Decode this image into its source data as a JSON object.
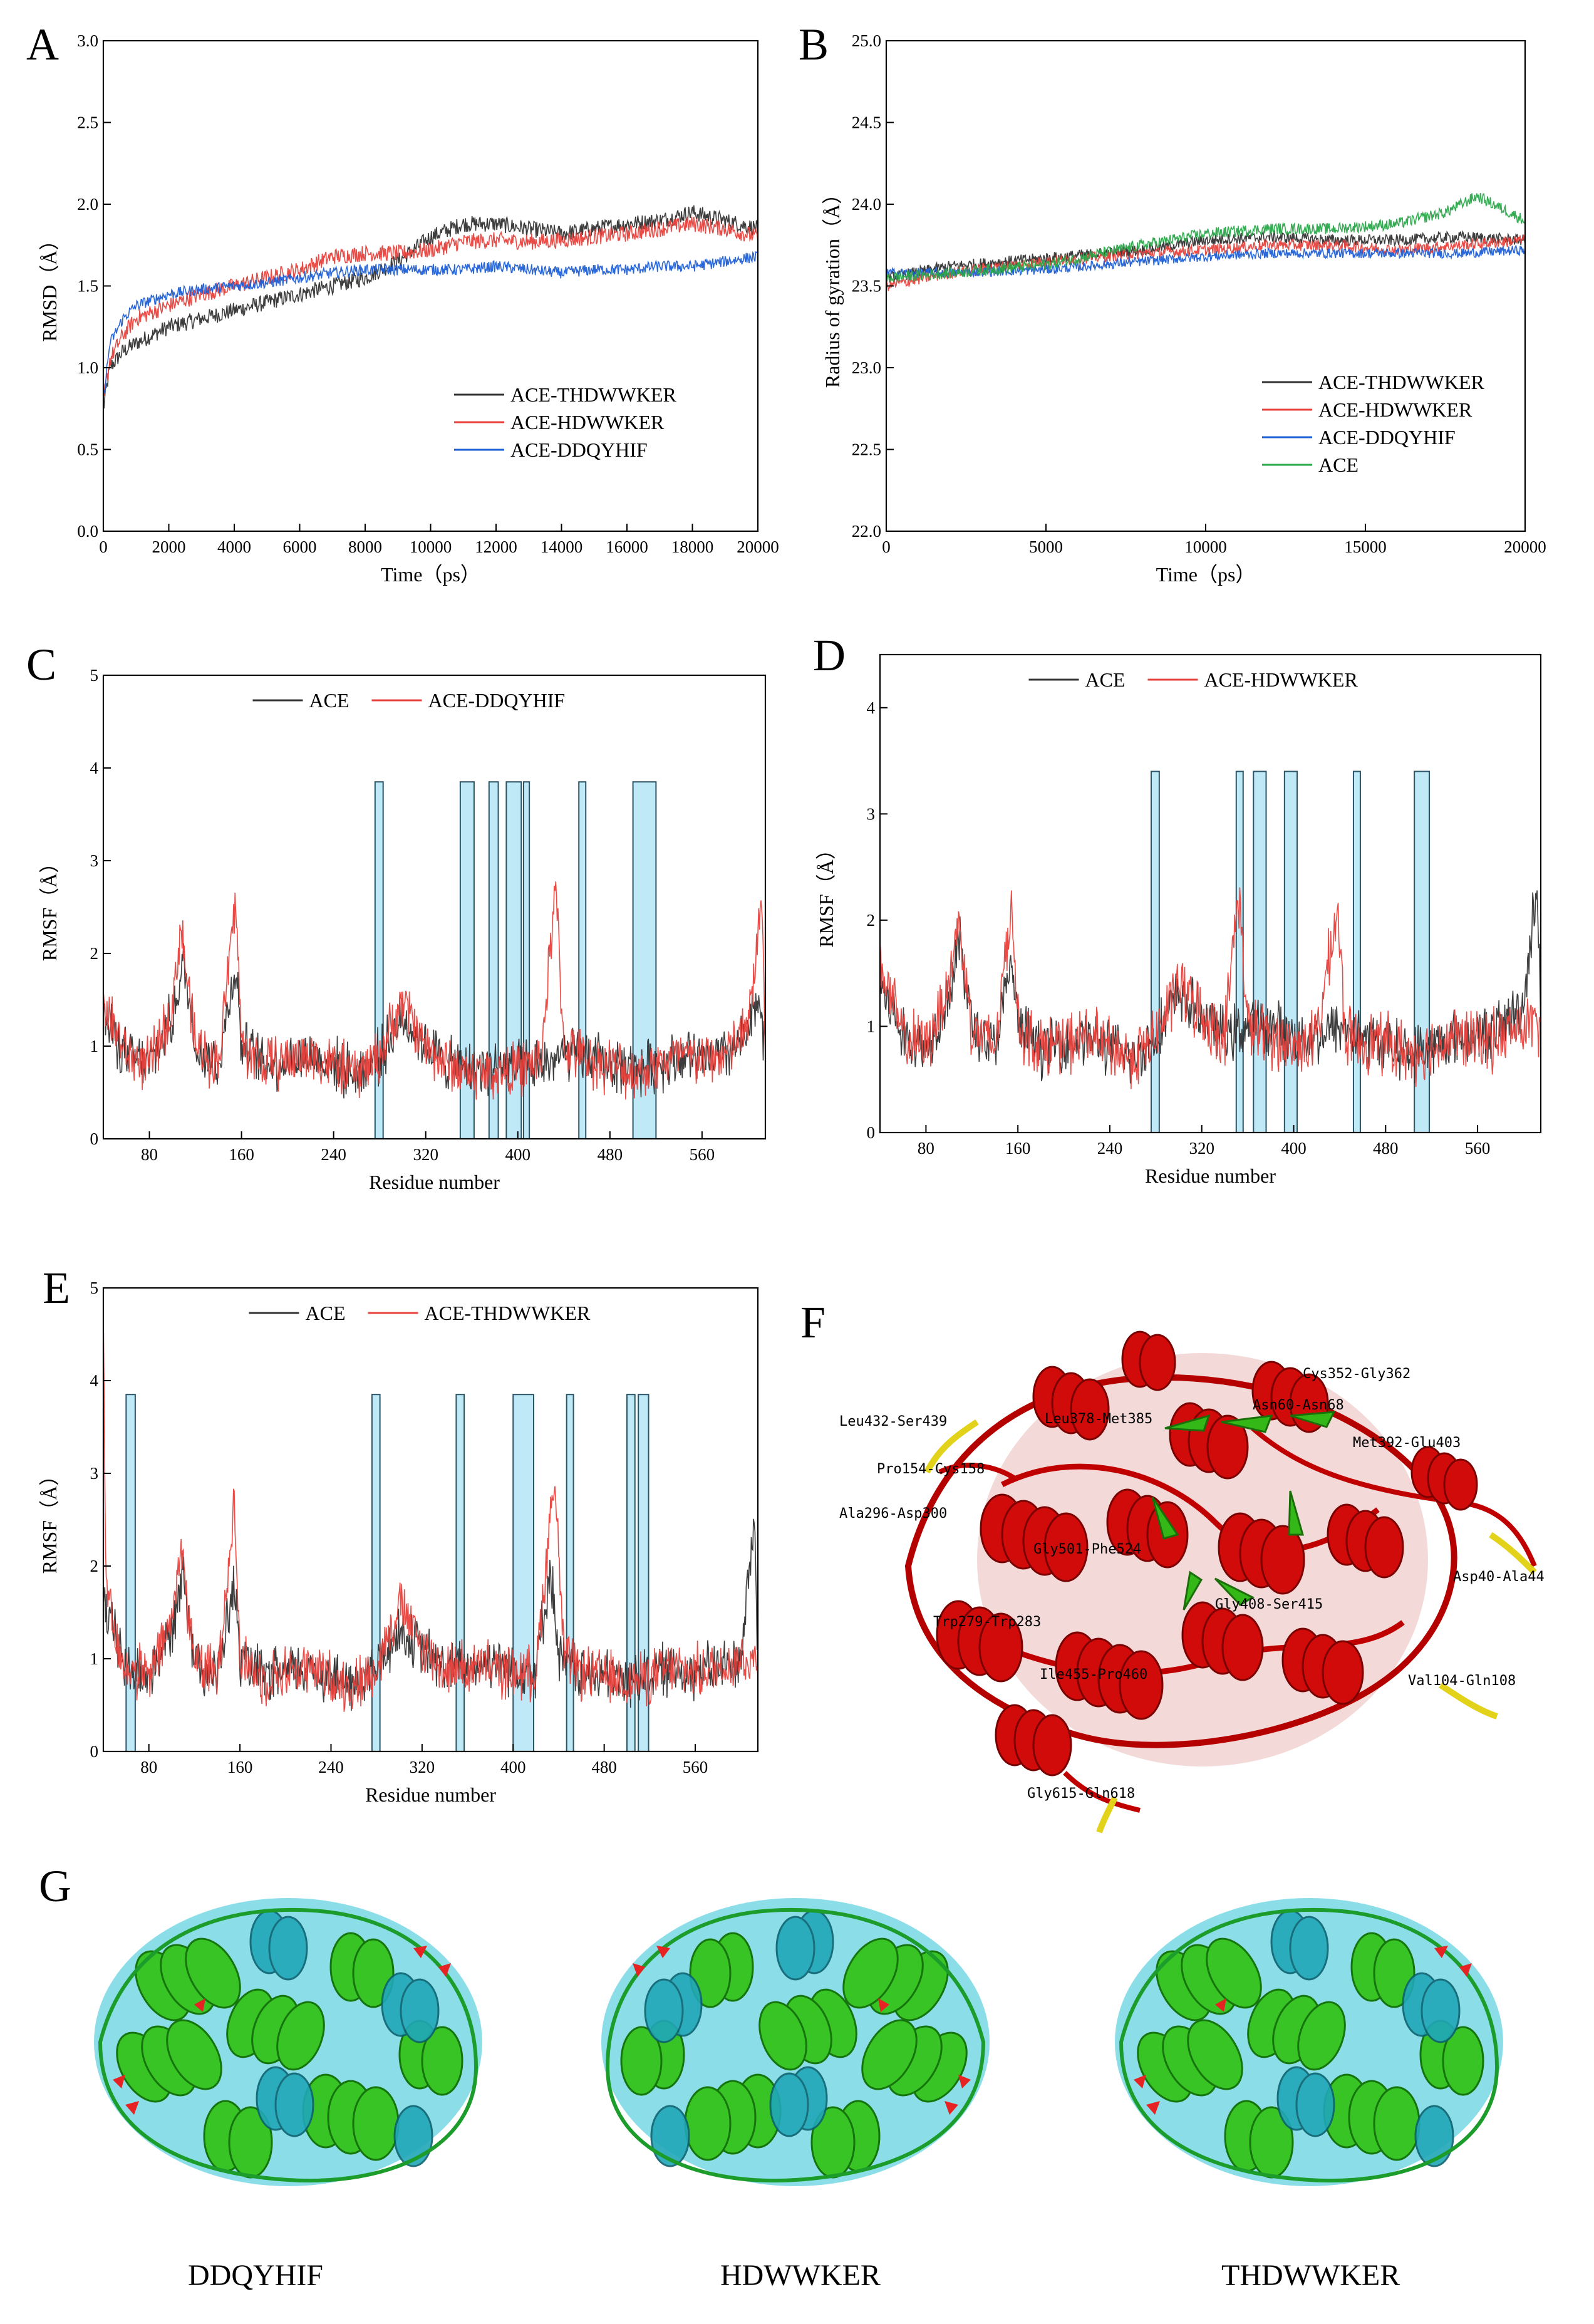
{
  "panels": {
    "A": {
      "letter": "A"
    },
    "B": {
      "letter": "B"
    },
    "C": {
      "letter": "C"
    },
    "D": {
      "letter": "D"
    },
    "E": {
      "letter": "E"
    },
    "F": {
      "letter": "F"
    },
    "G": {
      "letter": "G"
    }
  },
  "colors": {
    "black": "#333333",
    "red": "#e8413c",
    "blue": "#1f5fd6",
    "green": "#2aa84a",
    "highlight": "#bfe9f7",
    "highlightEdge": "#2a5566"
  },
  "chart_data": [
    {
      "id": "A",
      "type": "line",
      "xlabel": "Time（ps）",
      "ylabel": "RMSD（Å）",
      "xlim": [
        0,
        20000
      ],
      "ylim": [
        0,
        3.0
      ],
      "xticks": [
        0,
        2000,
        4000,
        6000,
        8000,
        10000,
        12000,
        14000,
        16000,
        18000,
        20000
      ],
      "yticks": [
        0.0,
        0.5,
        1.0,
        1.5,
        2.0,
        2.5,
        3.0
      ],
      "legend": "bottom-right",
      "series": [
        {
          "name": "ACE-THDWWKER",
          "color": "#333333",
          "noise": 0.05,
          "x": [
            0,
            200,
            600,
            1000,
            2000,
            3000,
            4000,
            5000,
            6000,
            7000,
            8000,
            9000,
            10000,
            11000,
            12000,
            13000,
            14000,
            15000,
            16000,
            17000,
            18000,
            19000,
            20000
          ],
          "y": [
            0.75,
            1.0,
            1.1,
            1.15,
            1.25,
            1.3,
            1.35,
            1.4,
            1.45,
            1.5,
            1.55,
            1.65,
            1.8,
            1.88,
            1.88,
            1.85,
            1.82,
            1.85,
            1.88,
            1.9,
            1.95,
            1.9,
            1.85
          ]
        },
        {
          "name": "ACE-HDWWKER",
          "color": "#e8413c",
          "noise": 0.05,
          "x": [
            0,
            200,
            600,
            1000,
            2000,
            3000,
            4000,
            5000,
            6000,
            7000,
            8000,
            9000,
            10000,
            11000,
            12000,
            13000,
            14000,
            15000,
            16000,
            17000,
            18000,
            19000,
            20000
          ],
          "y": [
            0.8,
            1.05,
            1.2,
            1.3,
            1.38,
            1.45,
            1.5,
            1.55,
            1.6,
            1.68,
            1.7,
            1.7,
            1.72,
            1.77,
            1.78,
            1.77,
            1.78,
            1.8,
            1.82,
            1.85,
            1.88,
            1.85,
            1.8
          ]
        },
        {
          "name": "ACE-DDQYHIF",
          "color": "#1f5fd6",
          "noise": 0.035,
          "x": [
            0,
            200,
            600,
            1000,
            2000,
            3000,
            4000,
            5000,
            6000,
            7000,
            8000,
            9000,
            10000,
            11000,
            12000,
            13000,
            14000,
            15000,
            16000,
            17000,
            18000,
            19000,
            20000
          ],
          "y": [
            0.8,
            1.15,
            1.3,
            1.38,
            1.45,
            1.48,
            1.5,
            1.52,
            1.55,
            1.58,
            1.6,
            1.6,
            1.6,
            1.6,
            1.62,
            1.6,
            1.58,
            1.6,
            1.6,
            1.62,
            1.62,
            1.65,
            1.68
          ]
        }
      ]
    },
    {
      "id": "B",
      "type": "line",
      "xlabel": "Time（ps）",
      "ylabel": "Radius of gyration（Å）",
      "xlim": [
        0,
        20000
      ],
      "ylim": [
        22.0,
        25.0
      ],
      "xticks": [
        0,
        5000,
        10000,
        15000,
        20000
      ],
      "yticks": [
        22.0,
        22.5,
        23.0,
        23.5,
        24.0,
        24.5,
        25.0
      ],
      "legend": "bottom-right",
      "series": [
        {
          "name": "ACE-THDWWKER",
          "color": "#333333",
          "noise": 0.035,
          "x": [
            0,
            2000,
            5000,
            8000,
            10000,
            12000,
            14000,
            16000,
            18000,
            20000
          ],
          "y": [
            23.55,
            23.62,
            23.67,
            23.72,
            23.78,
            23.8,
            23.78,
            23.78,
            23.8,
            23.78
          ]
        },
        {
          "name": "ACE-HDWWKER",
          "color": "#e8413c",
          "noise": 0.035,
          "x": [
            0,
            2000,
            5000,
            8000,
            10000,
            12000,
            14000,
            16000,
            18000,
            20000
          ],
          "y": [
            23.5,
            23.58,
            23.65,
            23.7,
            23.72,
            23.75,
            23.75,
            23.72,
            23.75,
            23.78
          ]
        },
        {
          "name": "ACE-DDQYHIF",
          "color": "#1f5fd6",
          "noise": 0.03,
          "x": [
            0,
            2000,
            5000,
            8000,
            10000,
            12000,
            14000,
            16000,
            18000,
            20000
          ],
          "y": [
            23.58,
            23.58,
            23.6,
            23.65,
            23.68,
            23.7,
            23.7,
            23.7,
            23.7,
            23.72
          ]
        },
        {
          "name": "ACE",
          "color": "#2aa84a",
          "noise": 0.035,
          "x": [
            0,
            2000,
            5000,
            8000,
            10000,
            12000,
            14000,
            16000,
            17500,
            18500,
            19500,
            20000
          ],
          "y": [
            23.55,
            23.58,
            23.63,
            23.75,
            23.82,
            23.85,
            23.85,
            23.88,
            23.95,
            24.05,
            23.95,
            23.9
          ]
        }
      ]
    },
    {
      "id": "C",
      "type": "line",
      "xlabel": "Residue number",
      "ylabel": "RMSF（Å）",
      "xlim": [
        40,
        615
      ],
      "ylim": [
        0,
        5
      ],
      "xticks": [
        80,
        160,
        240,
        320,
        400,
        480,
        560
      ],
      "yticks": [
        0,
        1,
        2,
        3,
        4,
        5
      ],
      "legend": "top",
      "highlight_top": 3.85,
      "highlights": [
        [
          276,
          283
        ],
        [
          350,
          362
        ],
        [
          375,
          383
        ],
        [
          390,
          403
        ],
        [
          405,
          410
        ],
        [
          453,
          459
        ],
        [
          500,
          520
        ]
      ],
      "series": [
        {
          "name": "ACE",
          "color": "#333333",
          "noise": 0.22,
          "x": [
            40,
            60,
            80,
            100,
            110,
            120,
            140,
            155,
            160,
            180,
            200,
            220,
            240,
            260,
            280,
            300,
            320,
            340,
            360,
            380,
            400,
            420,
            440,
            460,
            480,
            500,
            520,
            540,
            560,
            580,
            600,
            610,
            615
          ],
          "y": [
            1.3,
            0.9,
            0.8,
            1.3,
            1.9,
            1.0,
            0.8,
            1.9,
            1.0,
            0.8,
            0.85,
            0.9,
            0.8,
            0.7,
            0.9,
            1.3,
            1.0,
            0.8,
            0.75,
            0.8,
            0.75,
            0.8,
            0.9,
            0.9,
            0.8,
            0.75,
            0.8,
            0.9,
            0.85,
            0.9,
            1.1,
            1.6,
            0.9
          ]
        },
        {
          "name": "ACE-DDQYHIF",
          "color": "#e8413c",
          "noise": 0.22,
          "x": [
            40,
            60,
            80,
            100,
            107,
            120,
            140,
            155,
            160,
            180,
            200,
            220,
            240,
            260,
            280,
            300,
            320,
            340,
            360,
            380,
            400,
            420,
            433,
            440,
            460,
            480,
            500,
            520,
            540,
            560,
            580,
            600,
            612,
            615
          ],
          "y": [
            1.5,
            0.9,
            0.8,
            1.4,
            2.3,
            1.0,
            0.8,
            2.6,
            1.0,
            0.8,
            0.85,
            0.9,
            0.8,
            0.7,
            0.9,
            1.5,
            1.0,
            0.8,
            0.7,
            0.7,
            0.75,
            0.85,
            2.7,
            1.0,
            0.85,
            0.8,
            0.7,
            0.8,
            0.9,
            0.85,
            0.9,
            1.2,
            2.6,
            0.9
          ]
        }
      ]
    },
    {
      "id": "D",
      "type": "line",
      "xlabel": "Residue number",
      "ylabel": "RMSF（Å）",
      "xlim": [
        40,
        615
      ],
      "ylim": [
        0,
        4.5
      ],
      "xticks": [
        80,
        160,
        240,
        320,
        400,
        480,
        560
      ],
      "yticks": [
        0,
        1,
        2,
        3,
        4
      ],
      "legend": "top",
      "highlight_top": 3.4,
      "highlights": [
        [
          276,
          283
        ],
        [
          350,
          356
        ],
        [
          365,
          376
        ],
        [
          392,
          403
        ],
        [
          452,
          458
        ],
        [
          505,
          518
        ]
      ],
      "series": [
        {
          "name": "ACE",
          "color": "#333333",
          "noise": 0.2,
          "x": [
            40,
            60,
            80,
            100,
            110,
            120,
            140,
            155,
            160,
            180,
            200,
            220,
            240,
            260,
            280,
            300,
            320,
            340,
            360,
            380,
            400,
            420,
            440,
            460,
            480,
            500,
            520,
            540,
            560,
            580,
            600,
            612,
            615
          ],
          "y": [
            1.4,
            0.9,
            0.8,
            1.3,
            1.8,
            1.0,
            0.8,
            1.6,
            1.0,
            0.8,
            0.85,
            0.9,
            0.8,
            0.7,
            0.9,
            1.3,
            1.1,
            0.9,
            1.0,
            1.0,
            0.9,
            0.9,
            1.0,
            0.9,
            0.85,
            0.75,
            0.8,
            0.9,
            0.9,
            1.0,
            1.2,
            2.4,
            1.0
          ]
        },
        {
          "name": "ACE-HDWWKER",
          "color": "#e8413c",
          "noise": 0.22,
          "x": [
            40,
            60,
            80,
            100,
            108,
            120,
            140,
            155,
            160,
            180,
            200,
            220,
            240,
            260,
            280,
            300,
            320,
            340,
            352,
            360,
            380,
            400,
            420,
            438,
            445,
            460,
            480,
            500,
            520,
            540,
            560,
            580,
            600,
            615
          ],
          "y": [
            1.6,
            0.9,
            0.8,
            1.4,
            2.0,
            1.0,
            0.8,
            2.2,
            1.0,
            0.8,
            0.85,
            0.9,
            0.8,
            0.7,
            0.9,
            1.4,
            1.1,
            0.9,
            2.3,
            1.0,
            0.9,
            0.8,
            0.9,
            2.1,
            0.9,
            0.85,
            0.85,
            0.75,
            0.8,
            0.9,
            0.85,
            0.9,
            1.0,
            1.0
          ]
        }
      ]
    },
    {
      "id": "E",
      "type": "line",
      "xlabel": "Residue number",
      "ylabel": "RMSF（Å）",
      "xlim": [
        40,
        615
      ],
      "ylim": [
        0,
        5
      ],
      "xticks": [
        80,
        160,
        240,
        320,
        400,
        480,
        560
      ],
      "yticks": [
        0,
        1,
        2,
        3,
        4,
        5
      ],
      "legend": "top",
      "highlight_top": 3.85,
      "highlights": [
        [
          60,
          68
        ],
        [
          276,
          283
        ],
        [
          350,
          357
        ],
        [
          400,
          418
        ],
        [
          447,
          453
        ],
        [
          500,
          507
        ],
        [
          510,
          519
        ]
      ],
      "series": [
        {
          "name": "ACE",
          "color": "#333333",
          "noise": 0.22,
          "x": [
            40,
            60,
            80,
            100,
            110,
            120,
            140,
            155,
            160,
            180,
            200,
            220,
            240,
            260,
            280,
            300,
            320,
            340,
            360,
            380,
            400,
            420,
            433,
            440,
            460,
            480,
            500,
            520,
            540,
            560,
            580,
            600,
            612,
            615
          ],
          "y": [
            1.6,
            0.9,
            0.8,
            1.3,
            2.0,
            1.0,
            0.8,
            1.8,
            1.0,
            0.8,
            0.85,
            0.9,
            0.8,
            0.7,
            0.9,
            1.3,
            1.1,
            0.9,
            0.9,
            1.0,
            0.9,
            0.9,
            2.0,
            1.0,
            0.85,
            0.8,
            0.75,
            0.85,
            0.9,
            0.85,
            0.9,
            1.0,
            2.5,
            1.0
          ]
        },
        {
          "name": "ACE-THDWWKER",
          "color": "#e8413c",
          "noise": 0.22,
          "x": [
            40,
            42,
            50,
            60,
            80,
            100,
            108,
            120,
            140,
            155,
            160,
            180,
            200,
            220,
            240,
            260,
            280,
            300,
            320,
            340,
            360,
            380,
            400,
            420,
            436,
            445,
            460,
            480,
            500,
            520,
            540,
            560,
            580,
            600,
            615
          ],
          "y": [
            4.8,
            2.0,
            1.2,
            0.9,
            0.8,
            1.4,
            2.2,
            1.0,
            0.8,
            2.7,
            1.0,
            0.8,
            0.85,
            0.9,
            0.8,
            0.7,
            0.9,
            1.6,
            1.1,
            0.9,
            0.9,
            0.9,
            0.85,
            0.85,
            3.0,
            1.0,
            0.85,
            0.8,
            0.75,
            0.8,
            0.9,
            0.85,
            0.9,
            1.0,
            1.0
          ]
        }
      ]
    }
  ],
  "structureF": {
    "labels": [
      "Cys352-Gly362",
      "Asn60-Asn68",
      "Leu432-Ser439",
      "Leu378-Met385",
      "Met392-Glu403",
      "Pro154-Cys158",
      "Ala296-Asp300",
      "Gly501-Phe524",
      "Asp40-Ala44",
      "Gly408-Ser415",
      "Trp279-Trp283",
      "Val104-Gln108",
      "Ile455-Pro460",
      "Gly615-Gln618"
    ]
  },
  "structureG": {
    "labels": [
      "DDQYHIF",
      "HDWWKER",
      "THDWWKER"
    ]
  }
}
